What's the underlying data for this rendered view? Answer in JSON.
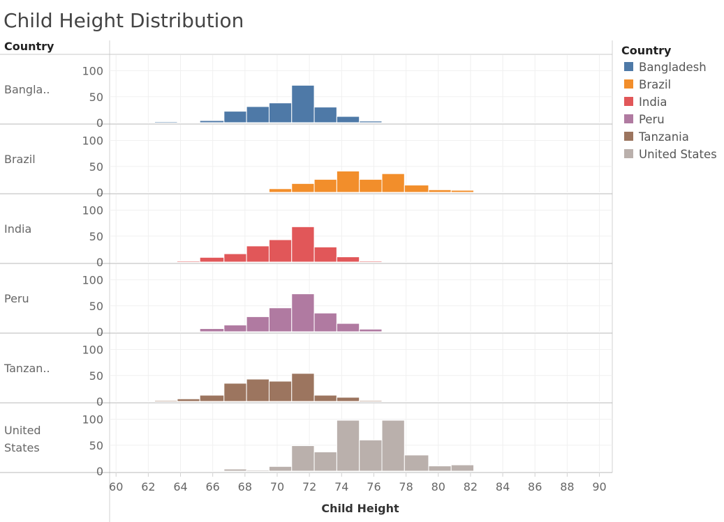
{
  "chart_data": {
    "type": "bar",
    "title": "Child Height Distribution",
    "row_header": "Country",
    "xlabel": "Child Height",
    "x_ticks": [
      60,
      62,
      64,
      66,
      68,
      70,
      72,
      74,
      76,
      78,
      80,
      82,
      84,
      86,
      88,
      90
    ],
    "xlim": [
      59.6,
      90.8
    ],
    "ylim": [
      0,
      110
    ],
    "y_ticks": [
      0,
      50,
      100
    ],
    "grid": true,
    "bin_edges": [
      61.0,
      62.4,
      63.8,
      65.2,
      66.7,
      68.1,
      69.5,
      70.9,
      72.3,
      73.7,
      75.1,
      76.5,
      77.9,
      79.4,
      80.8,
      82.2,
      83.6,
      85.0,
      86.4,
      87.8,
      89.3
    ],
    "legend": {
      "title": "Country",
      "position": "right"
    },
    "series": [
      {
        "name": "Bangladesh",
        "row_label": "Bangla..",
        "row_label_lines": [
          "Bangla.."
        ],
        "color": "#4E79A7",
        "values": [
          0,
          1,
          0,
          4,
          22,
          31,
          38,
          72,
          30,
          12,
          3,
          0,
          0,
          0,
          0,
          0,
          0,
          0,
          0,
          0
        ]
      },
      {
        "name": "Brazil",
        "row_label": "Brazil",
        "row_label_lines": [
          "Brazil"
        ],
        "color": "#F28E2B",
        "values": [
          0,
          0,
          0,
          0,
          0,
          0,
          7,
          17,
          25,
          41,
          25,
          36,
          14,
          5,
          4,
          0,
          0,
          0,
          0,
          0
        ]
      },
      {
        "name": "India",
        "row_label": "India",
        "row_label_lines": [
          "India"
        ],
        "color": "#E15759",
        "values": [
          0,
          0,
          1,
          9,
          16,
          31,
          43,
          68,
          29,
          10,
          2,
          0,
          0,
          0,
          0,
          0,
          0,
          0,
          0,
          0
        ]
      },
      {
        "name": "Peru",
        "row_label": "Peru",
        "row_label_lines": [
          "Peru"
        ],
        "color": "#B07AA1",
        "values": [
          0,
          0,
          0,
          6,
          13,
          29,
          46,
          73,
          36,
          16,
          5,
          0,
          0,
          0,
          0,
          0,
          0,
          0,
          0,
          0
        ]
      },
      {
        "name": "Tanzania",
        "row_label": "Tanzan..",
        "row_label_lines": [
          "Tanzan.."
        ],
        "color": "#9C755F",
        "values": [
          0,
          1,
          5,
          12,
          35,
          43,
          39,
          54,
          12,
          8,
          1,
          0,
          0,
          0,
          0,
          0,
          0,
          0,
          0,
          0
        ]
      },
      {
        "name": "United States",
        "row_label": "United States",
        "row_label_lines": [
          "United",
          "States"
        ],
        "color": "#BAB0AC",
        "values": [
          0,
          0,
          0,
          0,
          4,
          2,
          9,
          49,
          37,
          98,
          60,
          98,
          31,
          10,
          12,
          0,
          0,
          0,
          0,
          0
        ]
      }
    ]
  }
}
